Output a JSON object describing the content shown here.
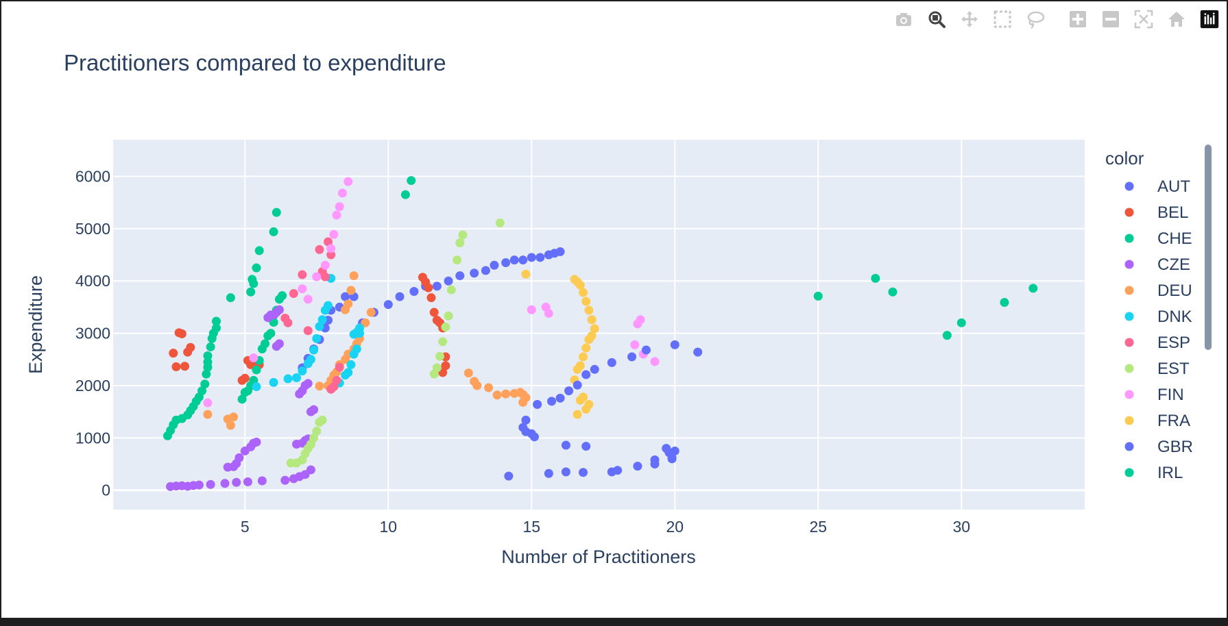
{
  "toolbar": {
    "buttons": [
      {
        "name": "camera-icon",
        "label": "Download plot as a png"
      },
      {
        "name": "zoom-icon",
        "label": "Zoom"
      },
      {
        "name": "pan-icon",
        "label": "Pan"
      },
      {
        "name": "box-select-icon",
        "label": "Box Select"
      },
      {
        "name": "lasso-select-icon",
        "label": "Lasso Select"
      },
      {
        "name": "zoom-in-icon",
        "label": "Zoom in"
      },
      {
        "name": "zoom-out-icon",
        "label": "Zoom out"
      },
      {
        "name": "autoscale-icon",
        "label": "Autoscale"
      },
      {
        "name": "reset-axes-icon",
        "label": "Reset axes"
      },
      {
        "name": "plotly-logo-icon",
        "label": "Produced with Plotly"
      }
    ]
  },
  "chart_data": {
    "type": "scatter",
    "title": "Practitioners compared to expenditure",
    "xlabel": "Number of Practitioners",
    "ylabel": "Expenditure",
    "xlim": [
      0.4,
      34.3
    ],
    "ylim": [
      -370,
      6700
    ],
    "xticks": [
      5,
      10,
      15,
      20,
      25,
      30
    ],
    "yticks": [
      0,
      1000,
      2000,
      3000,
      4000,
      5000,
      6000
    ],
    "grid": true,
    "plot_bg": "#e5ecf6",
    "legend_title": "color",
    "legend_position": "right",
    "series": [
      {
        "name": "AUT",
        "color": "#636efa",
        "x": [
          7.0,
          7.2,
          7.4,
          7.6,
          7.8,
          7.9,
          8.0,
          8.3,
          8.5,
          8.8,
          9.1,
          9.5,
          10.0,
          10.4,
          10.9,
          11.3,
          11.7,
          12.1,
          12.5,
          13.0,
          13.4,
          13.7,
          14.1,
          14.4,
          14.7,
          15.0,
          15.3,
          15.6,
          15.8,
          16.0
        ],
        "y": [
          2340,
          2520,
          2700,
          2880,
          3100,
          3250,
          3440,
          3500,
          3700,
          3700,
          3200,
          3400,
          3550,
          3700,
          3800,
          3900,
          3900,
          4000,
          4100,
          4150,
          4200,
          4300,
          4350,
          4400,
          4400,
          4450,
          4450,
          4500,
          4530,
          4560
        ]
      },
      {
        "name": "BEL",
        "color": "#ef553b",
        "x": [
          2.5,
          2.6,
          2.7,
          2.8,
          2.9,
          3.0,
          3.1,
          4.9,
          5.0,
          5.1,
          5.2,
          5.3,
          5.4,
          5.5,
          11.2,
          11.3,
          11.4,
          11.5,
          11.6,
          11.7,
          11.8,
          11.9,
          12.0,
          12.0,
          11.9
        ],
        "y": [
          2620,
          2360,
          3010,
          2990,
          2370,
          2640,
          2730,
          2100,
          2140,
          2480,
          2400,
          2450,
          2360,
          2400,
          4070,
          3980,
          3870,
          3680,
          3400,
          3250,
          3200,
          3100,
          2550,
          2380,
          2250
        ]
      },
      {
        "name": "CHE",
        "color": "#00cc96",
        "x": [
          2.3,
          2.4,
          2.5,
          2.6,
          2.8,
          3.0,
          3.1,
          3.2,
          3.3,
          3.4,
          3.5,
          3.6,
          3.65,
          3.7,
          3.7,
          3.7,
          3.8,
          3.85,
          3.9,
          4.0,
          4.0,
          4.5,
          4.9,
          5.0,
          5.1,
          5.2,
          5.3,
          5.4,
          5.5,
          5.6,
          5.7,
          5.8,
          5.9,
          6.0,
          6.0,
          6.1,
          6.2,
          6.3,
          5.2,
          5.25,
          5.3,
          5.4,
          5.5,
          6.0,
          6.1,
          10.6,
          10.8
        ],
        "y": [
          1040,
          1140,
          1250,
          1340,
          1370,
          1440,
          1520,
          1600,
          1700,
          1780,
          1900,
          2030,
          2220,
          2350,
          2450,
          2570,
          2740,
          2900,
          3000,
          3100,
          3230,
          3680,
          1740,
          1870,
          1900,
          2000,
          2100,
          2300,
          2480,
          2700,
          2800,
          2950,
          3000,
          3210,
          3340,
          3440,
          3650,
          3720,
          3790,
          4030,
          3950,
          4250,
          4580,
          4940,
          5310,
          5650,
          5920
        ]
      },
      {
        "name": "CZE",
        "color": "#ab63fa",
        "x": [
          2.4,
          2.6,
          2.8,
          3.0,
          3.2,
          3.4,
          3.8,
          4.3,
          4.7,
          5.1,
          5.6,
          6.4,
          6.7,
          6.9,
          7.1,
          7.3,
          4.4,
          4.6,
          4.7,
          4.8,
          5.0,
          5.2,
          5.3,
          5.4,
          6.8,
          7.0,
          7.1,
          7.2,
          7.3,
          7.4,
          6.9,
          7.0,
          7.1,
          7.2,
          5.8,
          5.9,
          6.0,
          6.1,
          6.2,
          6.2,
          6.1
        ],
        "y": [
          70,
          80,
          85,
          75,
          90,
          100,
          110,
          130,
          150,
          160,
          180,
          190,
          220,
          260,
          300,
          390,
          440,
          450,
          510,
          620,
          750,
          830,
          900,
          920,
          880,
          900,
          950,
          980,
          1500,
          1540,
          1840,
          1900,
          2000,
          2040,
          3300,
          3350,
          3350,
          3400,
          3450,
          2800,
          2750
        ]
      },
      {
        "name": "DEU",
        "color": "#ffa15a",
        "x": [
          3.7,
          4.4,
          4.5,
          4.6,
          7.6,
          7.9,
          8.0,
          8.1,
          8.2,
          8.3,
          8.5,
          8.6,
          8.8,
          8.9,
          9.0,
          9.2,
          9.4,
          8.5,
          8.6,
          8.7,
          8.8,
          12.8,
          13.0,
          13.1,
          13.5,
          13.8,
          14.1,
          14.4,
          14.6,
          14.7,
          14.8,
          14.7
        ],
        "y": [
          1450,
          1360,
          1240,
          1400,
          1990,
          2000,
          2100,
          2200,
          2260,
          2400,
          2500,
          2600,
          2700,
          2800,
          2900,
          3200,
          3400,
          3450,
          3560,
          3820,
          4100,
          2240,
          2080,
          2000,
          1960,
          1820,
          1840,
          1850,
          1870,
          1830,
          1770,
          1680
        ]
      },
      {
        "name": "DNK",
        "color": "#19d3f3",
        "x": [
          5.4,
          6.0,
          6.5,
          6.8,
          7.0,
          7.2,
          7.3,
          7.4,
          7.5,
          7.6,
          7.7,
          7.8,
          7.9,
          8.0,
          8.3,
          8.5,
          8.6,
          8.7,
          8.8,
          8.9,
          9.0,
          9.0,
          8.9,
          8.8
        ],
        "y": [
          1980,
          2060,
          2130,
          2150,
          2280,
          2420,
          2500,
          2680,
          2900,
          3130,
          3260,
          3440,
          3530,
          4050,
          2050,
          2200,
          2250,
          2400,
          2600,
          2700,
          3000,
          3100,
          3020,
          2980
        ]
      },
      {
        "name": "ESP",
        "color": "#ff6692",
        "x": [
          6.4,
          6.5,
          6.7,
          7.0,
          7.2,
          7.6,
          7.7,
          7.8,
          7.9,
          8.0,
          8.0,
          8.1,
          8.2,
          8.3
        ],
        "y": [
          3290,
          3200,
          3760,
          4120,
          3050,
          4600,
          4180,
          4080,
          4750,
          4500,
          1930,
          1980,
          2100,
          2350
        ]
      },
      {
        "name": "EST",
        "color": "#b6e880",
        "x": [
          6.6,
          6.8,
          7.0,
          7.1,
          7.2,
          7.3,
          7.4,
          7.5,
          7.6,
          7.7,
          11.6,
          11.7,
          11.8,
          11.9,
          12.0,
          12.1,
          12.2,
          12.4,
          12.5,
          12.6,
          13.9
        ],
        "y": [
          520,
          520,
          580,
          700,
          800,
          880,
          1000,
          1130,
          1300,
          1340,
          2220,
          2340,
          2560,
          2840,
          3120,
          3330,
          3830,
          4400,
          4730,
          4880,
          5110
        ]
      },
      {
        "name": "FIN",
        "color": "#ff97ff",
        "x": [
          3.7,
          5.3,
          7.0,
          7.2,
          7.5,
          7.8,
          8.0,
          8.1,
          8.2,
          8.3,
          8.4,
          8.6,
          15.0,
          15.5,
          15.6,
          18.6,
          18.7,
          18.8,
          18.9,
          19.3
        ],
        "y": [
          1670,
          2530,
          3850,
          3650,
          4080,
          4300,
          4620,
          4890,
          5260,
          5420,
          5680,
          5900,
          3450,
          3500,
          3380,
          2780,
          3180,
          3260,
          2600,
          2460
        ]
      },
      {
        "name": "FRA",
        "color": "#fecb52",
        "x": [
          14.8,
          16.5,
          16.6,
          16.7,
          16.8,
          16.9,
          17.0,
          17.1,
          17.2,
          17.1,
          17.0,
          16.9,
          16.8,
          16.7,
          16.6,
          16.5,
          16.6,
          16.7,
          16.8,
          16.9,
          17.0
        ],
        "y": [
          4130,
          4030,
          3980,
          3920,
          3780,
          3610,
          3440,
          3260,
          3090,
          2950,
          2880,
          2720,
          2550,
          2380,
          2310,
          2110,
          1450,
          1720,
          1780,
          1550,
          1640
        ]
      },
      {
        "name": "GBR",
        "color": "#636efa",
        "x": [
          14.2,
          15.6,
          16.2,
          16.8,
          17.8,
          18.0,
          18.7,
          19.3,
          19.3,
          19.7,
          19.8,
          19.9,
          20.0,
          19.9,
          16.2,
          16.9,
          15.1,
          15.0,
          14.8,
          14.7,
          14.8,
          15.2,
          15.7,
          16.0,
          16.3,
          16.6,
          16.9,
          17.2,
          17.8,
          18.5,
          19.0,
          20.0,
          20.8
        ],
        "y": [
          270,
          320,
          350,
          340,
          350,
          380,
          460,
          500,
          580,
          800,
          720,
          600,
          750,
          620,
          860,
          840,
          1020,
          1080,
          1120,
          1200,
          1340,
          1640,
          1700,
          1760,
          1900,
          2010,
          2210,
          2310,
          2440,
          2550,
          2680,
          2780,
          2640
        ]
      },
      {
        "name": "IRL",
        "color": "#00cc96",
        "x": [
          25.0,
          27.0,
          27.6,
          29.5,
          30.0,
          31.5,
          32.5
        ],
        "y": [
          3710,
          4050,
          3790,
          2960,
          3200,
          3590,
          3860
        ]
      }
    ]
  }
}
